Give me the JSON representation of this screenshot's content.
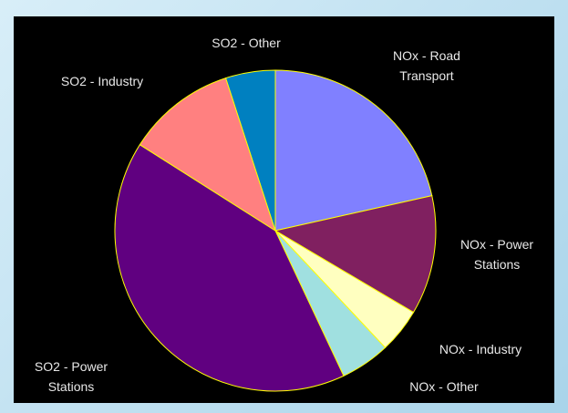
{
  "chart_data": {
    "type": "pie",
    "categories": [
      "NOx - Road Transport",
      "NOx - Power Stations",
      "NOx - Industry",
      "NOx - Other",
      "SO2 - Power Stations",
      "SO2 - Industry",
      "SO2 - Other"
    ],
    "values": [
      21.5,
      12,
      4.5,
      5,
      41,
      11,
      5
    ],
    "colors": [
      "#8080ff",
      "#802060",
      "#ffffc0",
      "#a0e0e0",
      "#600080",
      "#ff8080",
      "#0080c0"
    ],
    "edge_color": "#ffff00"
  }
}
